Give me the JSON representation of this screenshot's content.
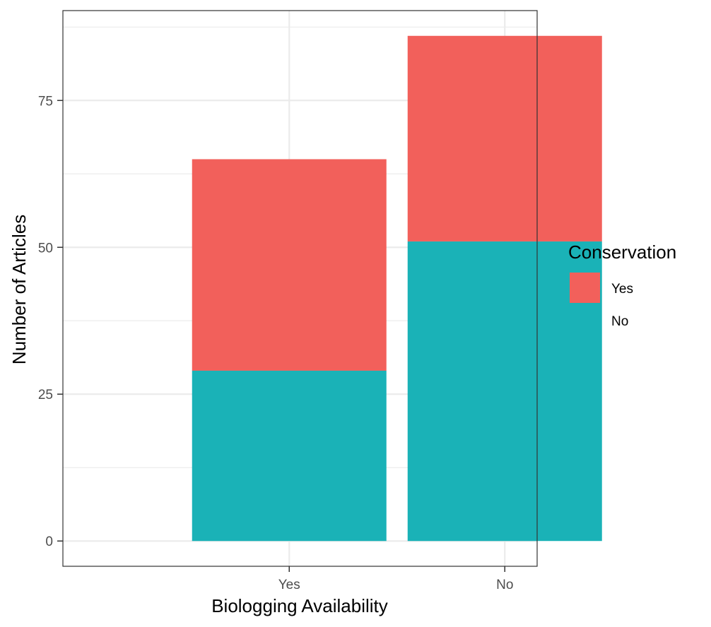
{
  "chart_data": {
    "type": "bar",
    "stacked": true,
    "categories": [
      "Yes",
      "No"
    ],
    "series": [
      {
        "name": "No",
        "values": [
          29,
          51
        ],
        "color": "#1AB2B7"
      },
      {
        "name": "Yes",
        "values": [
          36,
          35
        ],
        "color": "#F2605B"
      }
    ],
    "legend": {
      "title": "Conservation",
      "entries": [
        {
          "label": "Yes",
          "color": "#F2605B"
        },
        {
          "label": "No",
          "color": "#1AB2B7"
        }
      ],
      "placement": "right"
    },
    "xlabel": "Biologging Availability",
    "ylabel": "Number of Articles",
    "ylim": [
      -4.3,
      90.3
    ],
    "yticks": [
      0,
      25,
      50,
      75
    ],
    "yminor": [
      12.5,
      37.5,
      62.5,
      87.5
    ],
    "grid": true
  }
}
